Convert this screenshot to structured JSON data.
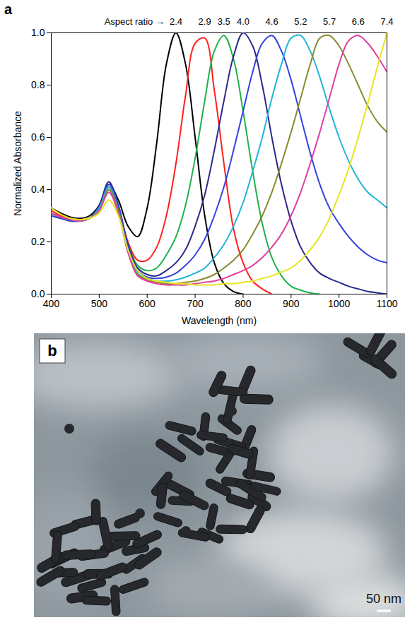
{
  "chart_data": {
    "type": "line",
    "panel": "a",
    "x_label": "Wavelength (nm)",
    "y_label": "Normalized Absorbance",
    "annotation": "Aspect ratio →",
    "x": [
      400,
      420,
      440,
      460,
      480,
      500,
      520,
      540,
      560,
      580,
      600,
      620,
      640,
      660,
      680,
      700,
      720,
      740,
      760,
      780,
      800,
      820,
      840,
      860,
      880,
      900,
      920,
      940,
      960,
      980,
      1000,
      1020,
      1040,
      1060,
      1080,
      1100
    ],
    "series": [
      {
        "name": "2.4",
        "color": "#000000",
        "values": [
          0.33,
          0.31,
          0.295,
          0.29,
          0.3,
          0.34,
          0.42,
          0.36,
          0.26,
          0.22,
          0.33,
          0.58,
          0.88,
          1.0,
          0.88,
          0.6,
          0.3,
          0.12,
          0.04,
          0.01,
          0.0,
          null,
          null,
          null,
          null,
          null,
          null,
          null,
          null,
          null,
          null,
          null,
          null,
          null,
          null,
          null
        ]
      },
      {
        "name": "2.9",
        "color": "#ff1f1f",
        "values": [
          0.32,
          0.3,
          0.29,
          0.285,
          0.29,
          0.33,
          0.41,
          0.33,
          0.2,
          0.13,
          0.13,
          0.18,
          0.3,
          0.5,
          0.76,
          0.96,
          0.98,
          0.78,
          0.5,
          0.25,
          0.12,
          0.05,
          0.02,
          0.0,
          null,
          null,
          null,
          null,
          null,
          null,
          null,
          null,
          null,
          null,
          null,
          null
        ]
      },
      {
        "name": "3.5",
        "color": "#1fb34a",
        "values": [
          0.31,
          0.295,
          0.285,
          0.28,
          0.29,
          0.33,
          0.4,
          0.32,
          0.19,
          0.11,
          0.09,
          0.1,
          0.15,
          0.22,
          0.34,
          0.52,
          0.74,
          0.93,
          0.99,
          0.9,
          0.7,
          0.47,
          0.27,
          0.14,
          0.07,
          0.03,
          0.015,
          0.005,
          0.0,
          null,
          null,
          null,
          null,
          null,
          null,
          null
        ]
      },
      {
        "name": "4.0",
        "color": "#2a2a8c",
        "values": [
          0.3,
          0.29,
          0.28,
          0.28,
          0.29,
          0.34,
          0.43,
          0.34,
          0.19,
          0.1,
          0.075,
          0.07,
          0.09,
          0.12,
          0.17,
          0.26,
          0.38,
          0.55,
          0.74,
          0.91,
          1.0,
          0.95,
          0.8,
          0.6,
          0.42,
          0.28,
          0.18,
          0.12,
          0.08,
          0.06,
          0.045,
          0.03,
          0.02,
          0.01,
          0.005,
          0.0
        ]
      },
      {
        "name": "4.6",
        "color": "#3344dd",
        "values": [
          0.3,
          0.29,
          0.28,
          0.28,
          0.29,
          0.33,
          0.42,
          0.34,
          0.18,
          0.09,
          0.065,
          0.06,
          0.065,
          0.08,
          0.11,
          0.15,
          0.21,
          0.3,
          0.41,
          0.55,
          0.7,
          0.85,
          0.96,
          0.99,
          0.93,
          0.82,
          0.68,
          0.54,
          0.42,
          0.33,
          0.27,
          0.22,
          0.18,
          0.15,
          0.13,
          0.12
        ]
      },
      {
        "name": "5.2",
        "color": "#22b5d6",
        "values": [
          0.31,
          0.295,
          0.285,
          0.28,
          0.29,
          0.33,
          0.41,
          0.32,
          0.17,
          0.08,
          0.06,
          0.05,
          0.05,
          0.055,
          0.065,
          0.08,
          0.1,
          0.14,
          0.19,
          0.26,
          0.35,
          0.47,
          0.6,
          0.75,
          0.88,
          0.98,
          0.99,
          0.93,
          0.83,
          0.71,
          0.6,
          0.51,
          0.44,
          0.39,
          0.36,
          0.33
        ]
      },
      {
        "name": "5.7",
        "color": "#8a8a2e",
        "values": [
          0.31,
          0.295,
          0.285,
          0.28,
          0.29,
          0.32,
          0.4,
          0.32,
          0.16,
          0.075,
          0.055,
          0.045,
          0.04,
          0.04,
          0.045,
          0.05,
          0.06,
          0.075,
          0.1,
          0.13,
          0.17,
          0.23,
          0.3,
          0.39,
          0.5,
          0.62,
          0.75,
          0.88,
          0.98,
          0.99,
          0.95,
          0.88,
          0.8,
          0.72,
          0.66,
          0.62
        ]
      },
      {
        "name": "6.6",
        "color": "#e040a0",
        "values": [
          0.31,
          0.295,
          0.285,
          0.28,
          0.29,
          0.32,
          0.39,
          0.31,
          0.16,
          0.07,
          0.05,
          0.04,
          0.035,
          0.035,
          0.035,
          0.04,
          0.045,
          0.05,
          0.06,
          0.075,
          0.09,
          0.11,
          0.14,
          0.18,
          0.23,
          0.3,
          0.39,
          0.5,
          0.62,
          0.75,
          0.88,
          0.97,
          0.99,
          0.96,
          0.91,
          0.85
        ]
      },
      {
        "name": "7.4",
        "color": "#e6e620",
        "values": [
          0.33,
          0.305,
          0.29,
          0.285,
          0.29,
          0.31,
          0.36,
          0.3,
          0.17,
          0.09,
          0.06,
          0.05,
          0.045,
          0.04,
          0.04,
          0.035,
          0.035,
          0.035,
          0.04,
          0.04,
          0.045,
          0.05,
          0.06,
          0.07,
          0.085,
          0.1,
          0.13,
          0.17,
          0.22,
          0.29,
          0.38,
          0.48,
          0.6,
          0.73,
          0.87,
          1.0
        ]
      }
    ],
    "xlim": [
      400,
      1100
    ],
    "xticks": [
      400,
      500,
      600,
      700,
      800,
      900,
      1000,
      1100
    ],
    "ylim": [
      0,
      1.0
    ],
    "yticks": [
      {
        "value": 0,
        "label": "0.0"
      },
      {
        "value": 0.2,
        "label": "0.2"
      },
      {
        "value": 0.4,
        "label": "0.4"
      },
      {
        "value": 0.6,
        "label": "0.6"
      },
      {
        "value": 0.8,
        "label": "0.8"
      },
      {
        "value": 1.0,
        "label": "1.0"
      }
    ],
    "grid": false
  },
  "image": {
    "panel": "b",
    "scale_bar": "50 nm"
  }
}
